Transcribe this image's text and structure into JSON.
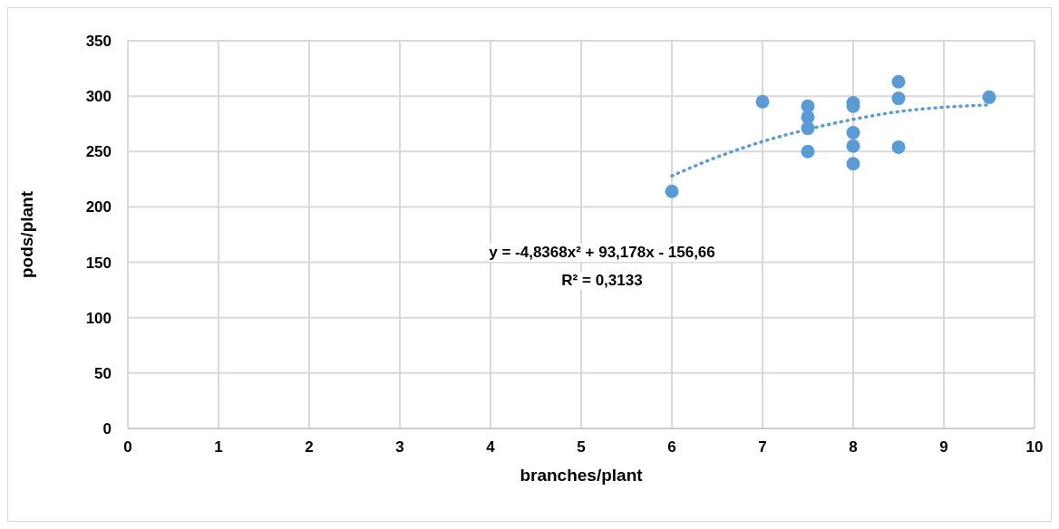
{
  "chart_data": {
    "type": "scatter",
    "xlabel": "branches/plant",
    "ylabel": "pods/plant",
    "xlim": [
      0,
      10
    ],
    "xticks": [
      0,
      1,
      2,
      3,
      4,
      5,
      6,
      7,
      8,
      9,
      10
    ],
    "ylim": [
      0,
      350
    ],
    "yticks": [
      0,
      50,
      100,
      150,
      200,
      250,
      300,
      350
    ],
    "grid": true,
    "legend": false,
    "annotations": [
      "y = -4,8368x² + 93,178x - 156,66",
      "R² = 0,3133"
    ],
    "series": [
      {
        "color": "#5b9bd5",
        "marker": "circle",
        "x": [
          6,
          7,
          7.5,
          7.5,
          7.5,
          7.5,
          8,
          8,
          8,
          8,
          8,
          8.5,
          8.5,
          8.5,
          9.5
        ],
        "values": [
          214,
          295,
          291,
          281,
          271,
          250,
          294,
          291,
          267,
          255,
          239,
          313,
          298,
          254,
          299
        ]
      },
      {
        "type": "line",
        "color": "#5b9bd5",
        "marker": "none",
        "line_style": "dotted",
        "x": [
          6,
          6.5,
          7,
          7.5,
          8,
          8.5,
          9,
          9.5
        ],
        "values": [
          228,
          245,
          259,
          270,
          279,
          286,
          290,
          292
        ]
      }
    ]
  }
}
